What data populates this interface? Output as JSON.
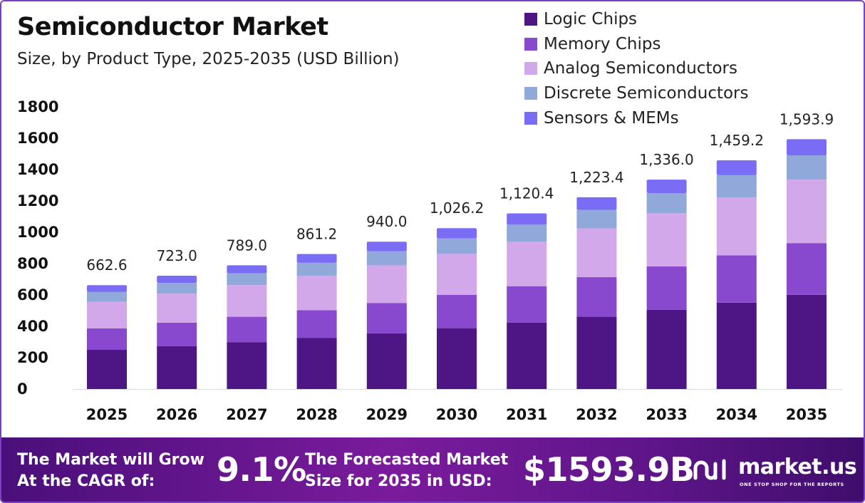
{
  "header": {
    "title": "Semiconductor Market",
    "subtitle": "Size, by Product Type, 2025-2035 (USD Billion)"
  },
  "chart_data": {
    "type": "bar",
    "stacked": true,
    "categories": [
      "2025",
      "2026",
      "2027",
      "2028",
      "2029",
      "2030",
      "2031",
      "2032",
      "2033",
      "2034",
      "2035"
    ],
    "series": [
      {
        "name": "Logic Chips",
        "color": "#4e1585",
        "values": [
          250,
          273,
          298,
          325,
          355,
          388,
          424,
          461,
          505,
          551,
          601
        ]
      },
      {
        "name": "Memory Chips",
        "color": "#8949cf",
        "values": [
          137,
          150,
          163,
          178,
          194,
          212,
          232,
          253,
          277,
          302,
          330
        ]
      },
      {
        "name": "Analog Semiconductors",
        "color": "#d3a8ea",
        "values": [
          170,
          185,
          202,
          220,
          240,
          262,
          285,
          311,
          339,
          370,
          405
        ]
      },
      {
        "name": "Discrete Semiconductors",
        "color": "#90a8da",
        "values": [
          62,
          69,
          75,
          82,
          90,
          98,
          108,
          118,
          129,
          141,
          155
        ]
      },
      {
        "name": "Sensors & MEMs",
        "color": "#7a6cf5",
        "values": [
          43.6,
          46.0,
          51.0,
          56.2,
          61.0,
          66.2,
          71.4,
          80.4,
          86.0,
          95.2,
          102.9
        ]
      }
    ],
    "totals": [
      "662.6",
      "723.0",
      "789.0",
      "861.2",
      "940.0",
      "1,026.2",
      "1,120.4",
      "1,223.4",
      "1,336.0",
      "1,459.2",
      "1,593.9"
    ],
    "yticks": [
      "0",
      "200",
      "400",
      "600",
      "800",
      "1000",
      "1200",
      "1400",
      "1600",
      "1800"
    ],
    "ylim": [
      0,
      1800
    ],
    "grid": false,
    "legend_position": "top-right",
    "xlabel": "",
    "ylabel": ""
  },
  "footer": {
    "cagr_label_line1": "The Market will Grow",
    "cagr_label_line2": "At the CAGR of:",
    "cagr_value": "9.1%",
    "forecast_label_line1": "The Forecasted Market",
    "forecast_label_line2": "Size for 2035 in USD:",
    "forecast_value": "$1593.9B",
    "brand_name": "market.us",
    "brand_tagline": "ONE STOP SHOP FOR THE REPORTS"
  }
}
